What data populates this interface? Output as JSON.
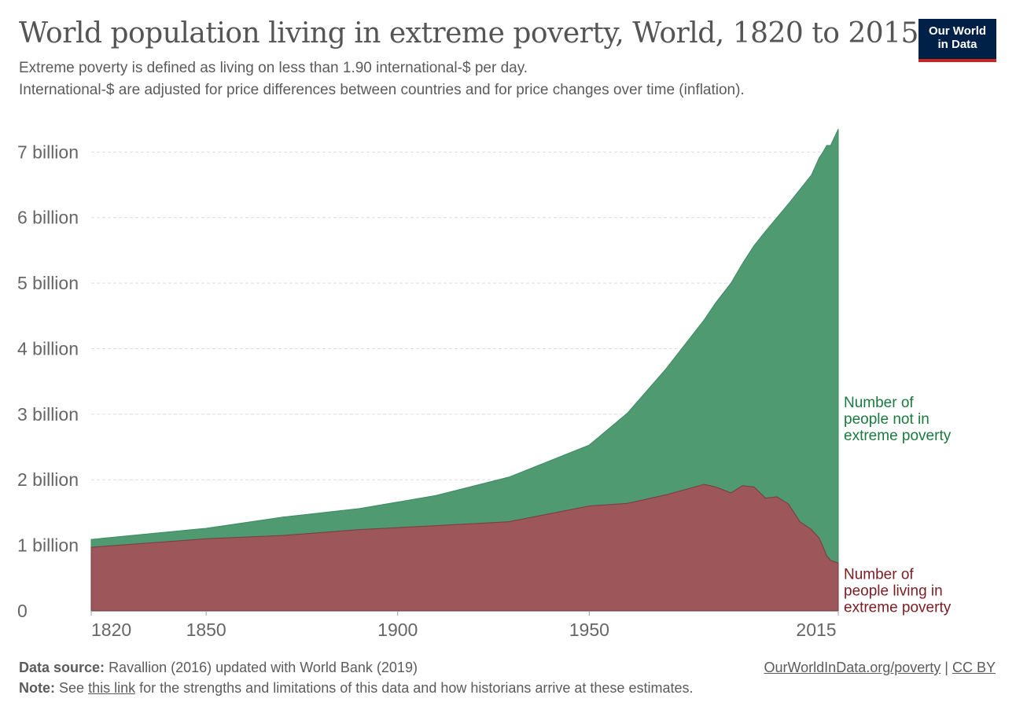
{
  "header": {
    "title": "World population living in extreme poverty, World, 1820 to 2015",
    "subtitle_line1": "Extreme poverty is defined as living on less than 1.90 international-$ per day.",
    "subtitle_line2": "International-$ are adjusted for price differences between countries and for price changes over time (inflation)."
  },
  "logo": {
    "line1": "Our World",
    "line2": "in Data"
  },
  "footer": {
    "source_label": "Data source:",
    "source_text": "Ravallion (2016) updated with World Bank (2019)",
    "note_label": "Note:",
    "note_pre": "See",
    "note_link": "this link",
    "note_post": "for the strengths and limitations of this data and how historians arrive at these estimates.",
    "url": "OurWorldInData.org/poverty",
    "separator": "|",
    "license": "CC BY"
  },
  "colors": {
    "not_poor": "#4f9a71",
    "poor": "#9d565a",
    "not_poor_label": "#1a7a3e",
    "poor_label": "#7a1c22"
  },
  "chart_data": {
    "type": "area",
    "stacked": true,
    "xlim": [
      1820,
      2015
    ],
    "ylim": [
      0,
      7400000000
    ],
    "x_ticks": [
      {
        "value": 1820,
        "label": "1820"
      },
      {
        "value": 1850,
        "label": "1850"
      },
      {
        "value": 1900,
        "label": "1900"
      },
      {
        "value": 1950,
        "label": "1950"
      },
      {
        "value": 2015,
        "label": "2015"
      }
    ],
    "y_ticks": [
      {
        "value": 0,
        "label": "0"
      },
      {
        "value": 1000000000,
        "label": "1 billion"
      },
      {
        "value": 2000000000,
        "label": "2 billion"
      },
      {
        "value": 3000000000,
        "label": "3 billion"
      },
      {
        "value": 4000000000,
        "label": "4 billion"
      },
      {
        "value": 5000000000,
        "label": "5 billion"
      },
      {
        "value": 6000000000,
        "label": "6 billion"
      },
      {
        "value": 7000000000,
        "label": "7 billion"
      }
    ],
    "grid": true,
    "x": [
      1820,
      1850,
      1870,
      1890,
      1910,
      1929,
      1950,
      1960,
      1970,
      1980,
      1983,
      1987,
      1990,
      1993,
      1996,
      1999,
      2002,
      2005,
      2008,
      2010,
      2011,
      2012,
      2013,
      2015
    ],
    "series": [
      {
        "name": "Number of people living in extreme poverty",
        "label_lines": [
          "Number of",
          "people living in",
          "extreme poverty"
        ],
        "color": "#9d565a",
        "values": [
          970000000.0,
          1100000000.0,
          1150000000.0,
          1240000000.0,
          1300000000.0,
          1360000000.0,
          1600000000.0,
          1640000000.0,
          1770000000.0,
          1930000000.0,
          1890000000.0,
          1800000000.0,
          1910000000.0,
          1890000000.0,
          1720000000.0,
          1740000000.0,
          1630000000.0,
          1360000000.0,
          1240000000.0,
          1110000000.0,
          980000000.0,
          840000000.0,
          770000000.0,
          730000000.0
        ]
      },
      {
        "name": "Number of people not in extreme poverty",
        "label_lines": [
          "Number of",
          "people not in",
          "extreme poverty"
        ],
        "color": "#4f9a71",
        "values": [
          120000000.0,
          160000000.0,
          280000000.0,
          320000000.0,
          460000000.0,
          680000000.0,
          930000000.0,
          1380000000.0,
          1920000000.0,
          2510000000.0,
          2810000000.0,
          3200000000.0,
          3390000000.0,
          3680000000.0,
          4070000000.0,
          4260000000.0,
          4580000000.0,
          5070000000.0,
          5410000000.0,
          5800000000.0,
          6020000000.0,
          6260000000.0,
          6330000000.0,
          6620000000.0
        ]
      }
    ]
  }
}
